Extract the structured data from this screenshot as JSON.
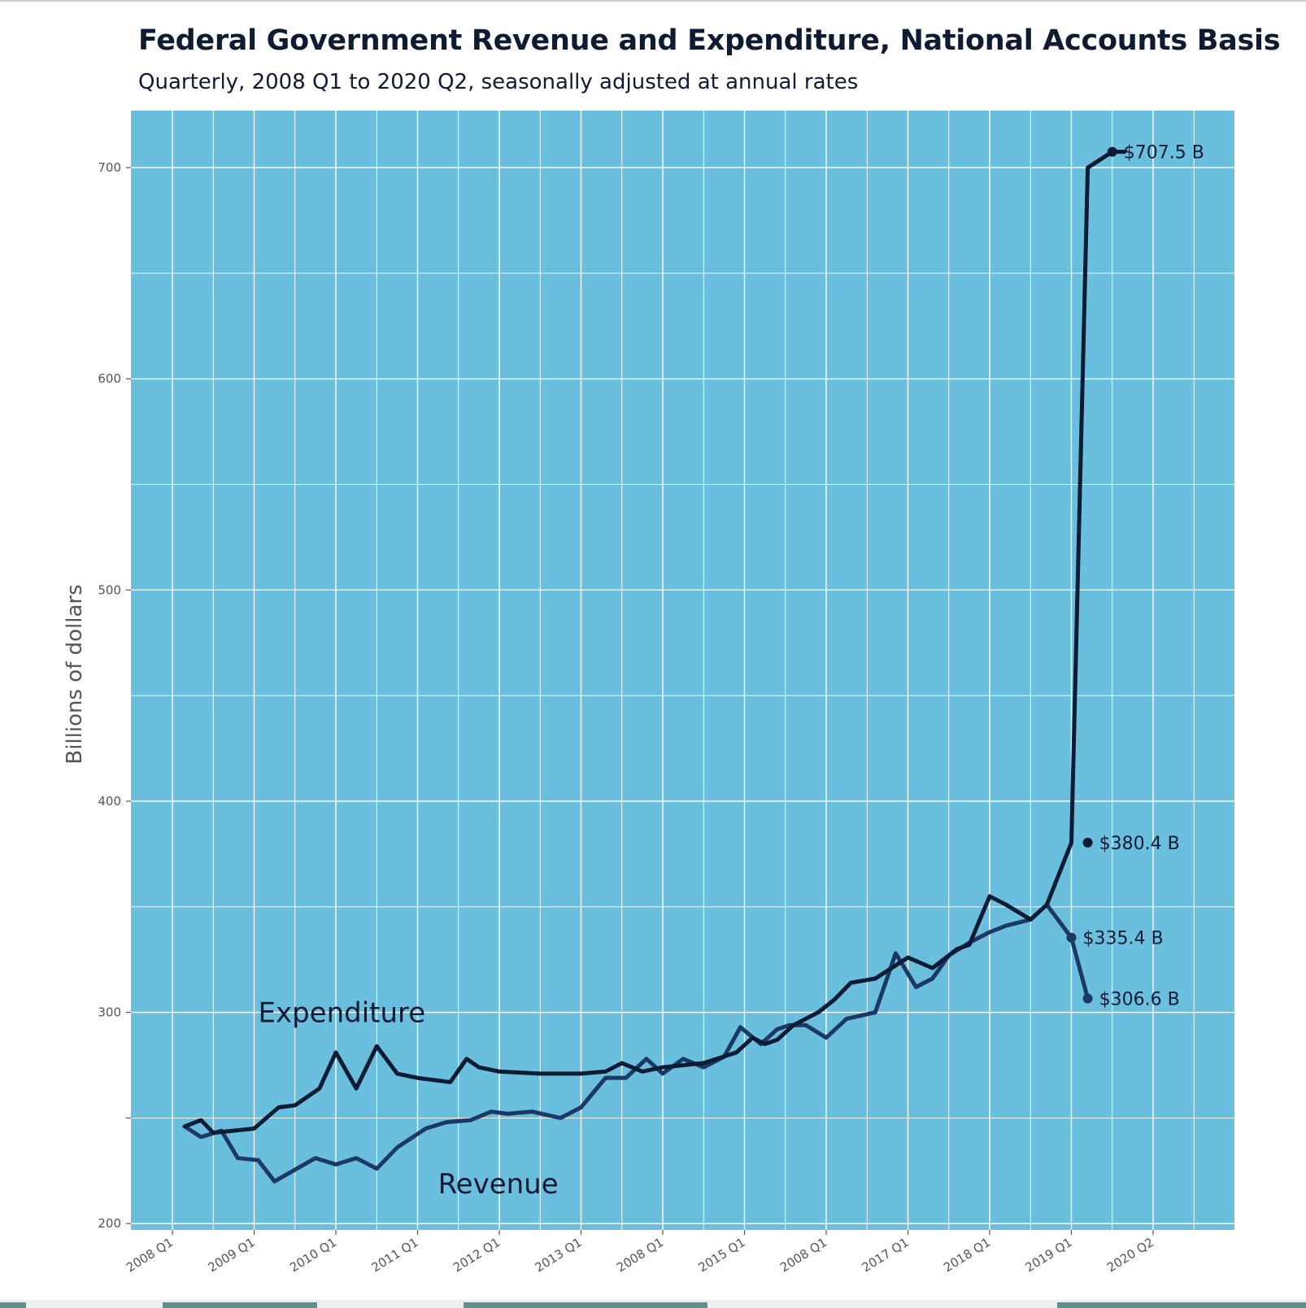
{
  "chart_data": {
    "type": "line",
    "title": "Federal Government Revenue and Expenditure, National Accounts Basis",
    "subtitle": "Quarterly, 2008 Q1 to 2020 Q2, seasonally adjusted at annual rates",
    "ylabel": "Billions of dollars",
    "xlabel": "",
    "ylim": [
      197,
      727
    ],
    "yticks": [
      200,
      300,
      400,
      500,
      600,
      700
    ],
    "xtick_labels": [
      "2008 Q1",
      "2009 Q1",
      "2010 Q1",
      "2011 Q1",
      "2012 Q1",
      "2013 Q1",
      "2008 Q1",
      "2015 Q1",
      "2008 Q1",
      "2017 Q1",
      "2018 Q1",
      "2019 Q1",
      "2020 Q2"
    ],
    "grid": true,
    "background": "#6abfde",
    "series": [
      {
        "name": "Expenditure",
        "color": "#0d1b33",
        "x": [
          0.15,
          0.35,
          0.5,
          1.0,
          1.3,
          1.5,
          1.8,
          2.0,
          2.25,
          2.5,
          2.75,
          3.0,
          3.4,
          3.6,
          3.75,
          4.0,
          4.5,
          5.0,
          5.3,
          5.5,
          5.75,
          6.0,
          6.5,
          6.9,
          7.1,
          7.25,
          7.4,
          7.6,
          7.9,
          8.1,
          8.3,
          8.6,
          9.0,
          9.3,
          9.6,
          9.75,
          10.0,
          10.2,
          10.5,
          10.7,
          11.0,
          11.2,
          11.5,
          11.65
        ],
        "values": [
          246,
          249,
          243,
          245,
          255,
          256,
          264,
          281,
          264,
          284,
          271,
          269,
          267,
          278,
          274,
          272,
          271,
          271,
          272,
          276,
          272,
          274,
          276,
          281,
          288,
          285,
          287,
          294,
          300,
          306,
          314,
          316,
          326,
          321,
          330,
          332,
          355,
          351,
          344,
          351,
          380.4,
          700,
          707.5,
          707.5
        ],
        "end_labels": [
          {
            "value": 707.5,
            "x": 11.5,
            "text": "$707.5 B"
          },
          {
            "value": 380.4,
            "x": 11.2,
            "text": "$380.4 B"
          }
        ]
      },
      {
        "name": "Revenue",
        "color": "#1d3866",
        "x": [
          0.15,
          0.35,
          0.6,
          0.8,
          1.05,
          1.25,
          1.75,
          2.0,
          2.25,
          2.5,
          2.75,
          3.1,
          3.35,
          3.65,
          3.9,
          4.1,
          4.4,
          4.75,
          5.0,
          5.3,
          5.55,
          5.8,
          6.0,
          6.25,
          6.5,
          6.75,
          6.95,
          7.2,
          7.4,
          7.55,
          7.75,
          8.0,
          8.25,
          8.6,
          8.85,
          9.1,
          9.3,
          9.5,
          9.75,
          10.0,
          10.2,
          10.5,
          10.7,
          11.0,
          11.2
        ],
        "values": [
          246,
          241,
          244,
          231,
          230,
          220,
          231,
          228,
          231,
          226,
          236,
          245,
          248,
          249,
          253,
          252,
          253,
          250,
          255,
          269,
          269,
          278,
          271,
          278,
          274,
          279,
          293,
          285,
          292,
          294,
          294,
          288,
          297,
          300,
          328,
          312,
          316,
          327,
          333,
          338,
          341,
          344,
          351,
          335.4,
          306.6
        ],
        "end_labels": [
          {
            "value": 335.4,
            "x": 11.0,
            "text": "$335.4 B"
          },
          {
            "value": 306.6,
            "x": 11.2,
            "text": "$306.6 B"
          }
        ]
      }
    ],
    "annotations": [
      {
        "text": "Expenditure",
        "x": 0.95,
        "value": 300
      },
      {
        "text": "Revenue",
        "x": 3.15,
        "value": 219
      }
    ]
  }
}
